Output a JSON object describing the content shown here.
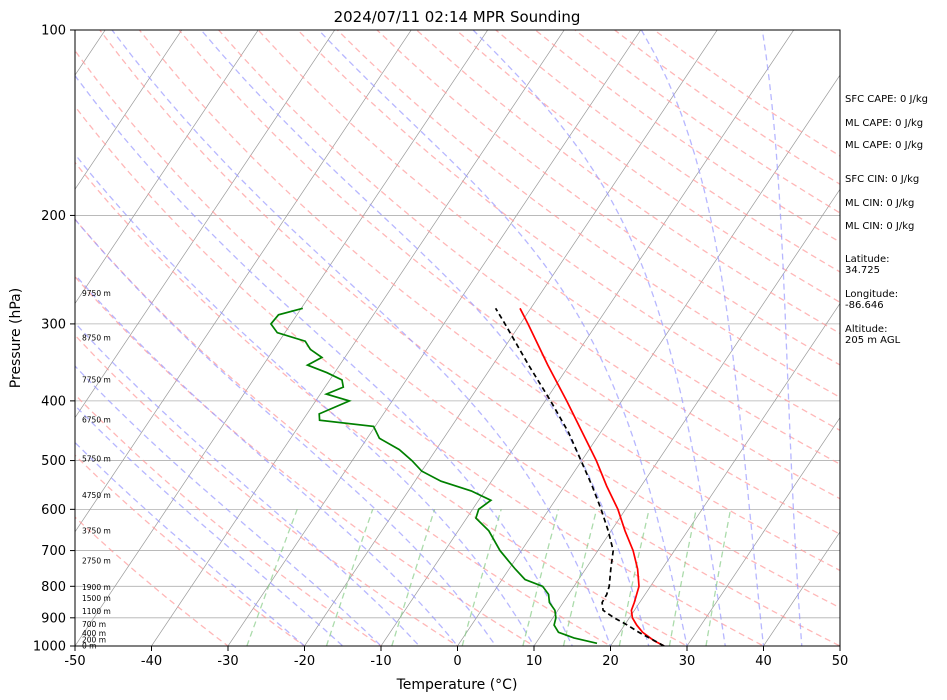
{
  "chart_data": {
    "type": "line",
    "title": "2024/07/11 02:14 MPR Sounding",
    "xlabel": "Temperature (°C)",
    "ylabel": "Pressure (hPa)",
    "xlim": [
      -50,
      50
    ],
    "ylim": [
      1000,
      100
    ],
    "y_scale": "log",
    "x_ticks": [
      -50,
      -40,
      -30,
      -20,
      -10,
      0,
      10,
      20,
      30,
      40,
      50
    ],
    "y_ticks": [
      100,
      200,
      300,
      400,
      500,
      600,
      700,
      800,
      900,
      1000
    ],
    "grid": true,
    "series": [
      {
        "color": "#ff0000",
        "pressure": [
          1000,
          980,
          950,
          925,
          900,
          875,
          850,
          800,
          750,
          700,
          650,
          600,
          550,
          500,
          450,
          400,
          350,
          300,
          283
        ],
        "values": [
          27.0,
          25.2,
          23.0,
          21.6,
          20.4,
          19.6,
          19.3,
          18.5,
          16.8,
          14.6,
          11.8,
          9.0,
          5.5,
          1.9,
          -2.4,
          -7.2,
          -12.8,
          -19.0,
          -21.4
        ]
      },
      {
        "color": "#000000",
        "pressure": [
          1000,
          975,
          950,
          925,
          900,
          875,
          850,
          825,
          800,
          750,
          700,
          650,
          600,
          550,
          500,
          450,
          400,
          350,
          300,
          283
        ],
        "values": [
          27.0,
          24.8,
          22.5,
          20.4,
          18.0,
          15.9,
          15.1,
          15.0,
          14.6,
          13.3,
          12.0,
          9.6,
          6.8,
          3.6,
          -0.1,
          -4.2,
          -9.3,
          -15.3,
          -22.0,
          -24.6
        ]
      },
      {
        "color": "#008000",
        "pressure": [
          990,
          970,
          950,
          925,
          900,
          875,
          850,
          825,
          800,
          780,
          750,
          700,
          650,
          620,
          600,
          580,
          560,
          540,
          520,
          500,
          480,
          460,
          440,
          430,
          420,
          400,
          390,
          380,
          370,
          360,
          350,
          340,
          330,
          320,
          310,
          300,
          290,
          283
        ],
        "values": [
          18.0,
          14.5,
          12.0,
          10.8,
          10.4,
          9.6,
          8.2,
          7.4,
          5.9,
          3.0,
          0.8,
          -2.8,
          -6.0,
          -8.8,
          -9.2,
          -8.4,
          -11.8,
          -16.6,
          -20.0,
          -22.2,
          -24.8,
          -28.4,
          -30.2,
          -37.8,
          -38.4,
          -35.6,
          -39.2,
          -37.6,
          -38.4,
          -41.0,
          -44.2,
          -43.0,
          -45.2,
          -46.6,
          -51.0,
          -52.6,
          -52.4,
          -49.8
        ]
      }
    ],
    "height_labels": [
      {
        "p": 1000,
        "text": "0 m"
      },
      {
        "p": 977,
        "text": "200 m"
      },
      {
        "p": 955,
        "text": "400 m"
      },
      {
        "p": 922,
        "text": "700 m"
      },
      {
        "p": 879,
        "text": "1100 m"
      },
      {
        "p": 838,
        "text": "1500 m"
      },
      {
        "p": 803,
        "text": "1900 m"
      },
      {
        "p": 728,
        "text": "2750 m"
      },
      {
        "p": 650,
        "text": "3750 m"
      },
      {
        "p": 570,
        "text": "4750 m"
      },
      {
        "p": 497,
        "text": "5750 m"
      },
      {
        "p": 430,
        "text": "6750 m"
      },
      {
        "p": 370,
        "text": "7750 m"
      },
      {
        "p": 316,
        "text": "8750 m"
      },
      {
        "p": 268,
        "text": "9750 m"
      }
    ]
  },
  "annotations": {
    "sfc_cape": "SFC CAPE: 0 J/kg",
    "ml_cape": "ML CAPE: 0 J/kg",
    "ml_cape2": "ML CAPE: 0 J/kg",
    "sfc_cin": "SFC CIN: 0 J/kg",
    "ml_cin": "ML CIN: 0 J/kg",
    "ml_cin2": "ML CIN: 0 J/kg",
    "latitude_label": "Latitude:",
    "latitude_value": "34.725",
    "longitude_label": "Longitude:",
    "longitude_value": "-86.646",
    "altitude_label": "Altitude:",
    "altitude_value": "205 m AGL"
  },
  "colors": {
    "temperature": "#ff0000",
    "parcel": "#000000",
    "dewpoint": "#008000",
    "dry_adiabat": "#ff9999",
    "moist_adiabat": "#9999ff",
    "mixing_ratio": "#88cc88",
    "isotherm": "#999999"
  }
}
